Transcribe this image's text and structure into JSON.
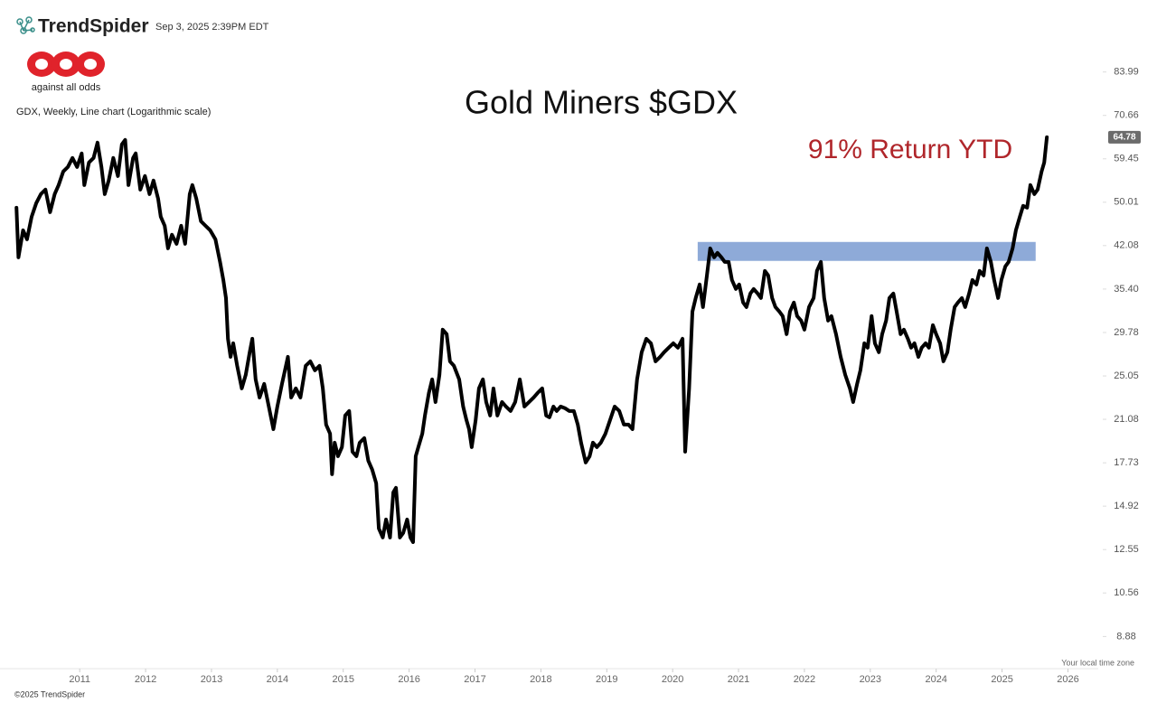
{
  "chart_data": {
    "type": "line",
    "brand": "TrendSpider",
    "timestamp": "Sep 3, 2025 2:39PM EDT",
    "logo_text": "against all odds",
    "title": "Gold Miners $GDX",
    "subtitle": "GDX, Weekly, Line chart (Logarithmic scale)",
    "annotation": "91% Return YTD",
    "annotation_color": "#b0262b",
    "footer_note": "Your local time zone",
    "copyright": "©2025 TrendSpider",
    "log_scale": true,
    "grid": false,
    "xlim": [
      2009.79,
      2026.46
    ],
    "xticks": [
      2011,
      2012,
      2013,
      2014,
      2015,
      2016,
      2017,
      2018,
      2019,
      2020,
      2021,
      2022,
      2023,
      2024,
      2025,
      2026
    ],
    "ylim": [
      7.87,
      89.5
    ],
    "yticks": [
      8.88,
      10.56,
      12.55,
      14.92,
      17.73,
      21.08,
      25.05,
      29.78,
      {
        "value": 35.4,
        "label": "35.40"
      },
      42.08,
      50.01,
      59.45,
      70.66,
      83.99
    ],
    "zone": {
      "x": [
        2020.38,
        2025.51
      ],
      "y": [
        39.6,
        42.7
      ],
      "color": "#8eaad8"
    },
    "series": [
      {
        "name": "GDX",
        "color": "#000000",
        "x": [
          2010.04,
          2010.07,
          2010.14,
          2010.2,
          2010.27,
          2010.34,
          2010.41,
          2010.48,
          2010.55,
          2010.62,
          2010.68,
          2010.75,
          2010.82,
          2010.89,
          2010.96,
          2011.03,
          2011.07,
          2011.14,
          2011.21,
          2011.27,
          2011.33,
          2011.38,
          2011.44,
          2011.51,
          2011.58,
          2011.64,
          2011.69,
          2011.74,
          2011.81,
          2011.85,
          2011.92,
          2011.99,
          2012.06,
          2012.12,
          2012.19,
          2012.23,
          2012.29,
          2012.34,
          2012.4,
          2012.47,
          2012.54,
          2012.6,
          2012.67,
          2012.71,
          2012.77,
          2012.84,
          2012.91,
          2012.98,
          2013.06,
          2013.13,
          2013.18,
          2013.22,
          2013.25,
          2013.29,
          2013.33,
          2013.39,
          2013.46,
          2013.52,
          2013.58,
          2013.62,
          2013.67,
          2013.73,
          2013.8,
          2013.87,
          2013.94,
          2014.0,
          2014.07,
          2014.16,
          2014.21,
          2014.28,
          2014.35,
          2014.43,
          2014.5,
          2014.57,
          2014.64,
          2014.69,
          2014.74,
          2014.8,
          2014.83,
          2014.87,
          2014.92,
          2014.98,
          2015.03,
          2015.09,
          2015.14,
          2015.2,
          2015.25,
          2015.32,
          2015.38,
          2015.44,
          2015.5,
          2015.54,
          2015.6,
          2015.65,
          2015.71,
          2015.76,
          2015.8,
          2015.86,
          2015.91,
          2015.97,
          2016.02,
          2016.06,
          2016.1,
          2016.14,
          2016.2,
          2016.24,
          2016.3,
          2016.35,
          2016.4,
          2016.46,
          2016.51,
          2016.57,
          2016.62,
          2016.68,
          2016.76,
          2016.82,
          2016.87,
          2016.91,
          2016.95,
          2017.01,
          2017.06,
          2017.12,
          2017.17,
          2017.23,
          2017.28,
          2017.34,
          2017.41,
          2017.47,
          2017.54,
          2017.61,
          2017.68,
          2017.75,
          2017.82,
          2017.89,
          2017.95,
          2018.02,
          2018.08,
          2018.13,
          2018.19,
          2018.24,
          2018.3,
          2018.37,
          2018.43,
          2018.5,
          2018.56,
          2018.61,
          2018.68,
          2018.74,
          2018.79,
          2018.85,
          2018.91,
          2018.98,
          2019.05,
          2019.12,
          2019.19,
          2019.26,
          2019.33,
          2019.39,
          2019.46,
          2019.53,
          2019.6,
          2019.67,
          2019.74,
          2019.81,
          2019.87,
          2019.94,
          2020.01,
          2020.08,
          2020.15,
          2020.19,
          2020.25,
          2020.3,
          2020.35,
          2020.41,
          2020.46,
          2020.52,
          2020.57,
          2020.63,
          2020.68,
          2020.74,
          2020.79,
          2020.85,
          2020.9,
          2020.96,
          2021.01,
          2021.07,
          2021.12,
          2021.18,
          2021.23,
          2021.29,
          2021.34,
          2021.4,
          2021.45,
          2021.51,
          2021.56,
          2021.62,
          2021.67,
          2021.73,
          2021.78,
          2021.84,
          2021.89,
          2021.95,
          2022.0,
          2022.07,
          2022.14,
          2022.19,
          2022.25,
          2022.3,
          2022.36,
          2022.41,
          2022.48,
          2022.55,
          2022.62,
          2022.69,
          2022.74,
          2022.8,
          2022.85,
          2022.91,
          2022.96,
          2023.02,
          2023.07,
          2023.13,
          2023.18,
          2023.24,
          2023.29,
          2023.35,
          2023.4,
          2023.46,
          2023.51,
          2023.57,
          2023.62,
          2023.67,
          2023.73,
          2023.78,
          2023.84,
          2023.89,
          2023.95,
          2024.0,
          2024.06,
          2024.11,
          2024.17,
          2024.22,
          2024.28,
          2024.33,
          2024.39,
          2024.44,
          2024.5,
          2024.55,
          2024.61,
          2024.66,
          2024.72,
          2024.77,
          2024.83,
          2024.88,
          2024.94,
          2024.99,
          2025.05,
          2025.1,
          2025.16,
          2025.21,
          2025.27,
          2025.32,
          2025.38,
          2025.43,
          2025.49,
          2025.54,
          2025.6,
          2025.64,
          2025.68
        ],
        "values": [
          48.94,
          40.16,
          44.73,
          43.15,
          47.21,
          49.83,
          51.65,
          52.59,
          48.07,
          51.65,
          53.55,
          56.52,
          57.54,
          59.65,
          57.54,
          60.74,
          53.55,
          58.59,
          59.65,
          63.41,
          57.54,
          51.65,
          54.52,
          59.65,
          55.51,
          62.96,
          64.1,
          53.55,
          59.65,
          60.74,
          52.59,
          55.51,
          51.65,
          54.52,
          50.73,
          47.21,
          45.54,
          41.63,
          43.94,
          42.38,
          45.54,
          42.38,
          51.65,
          53.55,
          50.73,
          46.37,
          45.54,
          44.73,
          43.15,
          39.44,
          36.7,
          34.16,
          29.05,
          27.03,
          28.53,
          26.08,
          23.84,
          25.16,
          27.53,
          29.05,
          24.71,
          22.99,
          24.27,
          22.18,
          20.27,
          22.18,
          24.27,
          27.03,
          22.99,
          23.84,
          22.99,
          26.08,
          26.55,
          25.62,
          26.08,
          23.84,
          20.64,
          19.91,
          16.94,
          19.21,
          18.2,
          18.87,
          21.4,
          21.79,
          18.53,
          18.2,
          19.21,
          19.56,
          17.88,
          17.25,
          16.34,
          13.65,
          13.17,
          14.15,
          13.17,
          15.76,
          16.05,
          13.17,
          13.41,
          14.15,
          13.17,
          12.93,
          18.2,
          18.87,
          19.91,
          21.4,
          23.41,
          24.71,
          22.58,
          25.16,
          30.12,
          29.58,
          26.55,
          26.08,
          24.71,
          22.18,
          21.02,
          20.27,
          18.87,
          21.02,
          23.84,
          24.71,
          22.58,
          21.4,
          23.84,
          21.4,
          22.58,
          22.18,
          21.79,
          22.58,
          24.71,
          22.18,
          22.58,
          22.99,
          23.41,
          23.84,
          21.4,
          21.25,
          22.18,
          21.79,
          22.18,
          22.02,
          21.79,
          21.79,
          20.64,
          19.21,
          17.75,
          18.2,
          19.21,
          18.87,
          19.21,
          19.91,
          21.02,
          22.18,
          21.79,
          20.64,
          20.64,
          20.27,
          24.71,
          27.53,
          29.05,
          28.53,
          26.55,
          27.03,
          27.53,
          28.03,
          28.53,
          28.03,
          29.05,
          18.53,
          23.84,
          32.36,
          34.16,
          36.05,
          32.95,
          37.37,
          41.63,
          40.16,
          40.89,
          40.16,
          39.44,
          39.44,
          36.7,
          35.41,
          36.05,
          33.55,
          32.95,
          34.78,
          35.41,
          34.78,
          34.16,
          38.05,
          37.37,
          34.16,
          32.95,
          32.36,
          31.79,
          29.58,
          32.36,
          33.55,
          31.79,
          31.22,
          30.12,
          32.95,
          34.16,
          38.05,
          39.44,
          34.16,
          31.22,
          31.79,
          29.58,
          27.03,
          25.16,
          23.84,
          22.58,
          24.27,
          25.62,
          28.53,
          28.03,
          31.79,
          28.53,
          27.53,
          29.58,
          31.22,
          34.16,
          34.78,
          32.36,
          29.58,
          30.12,
          29.05,
          28.03,
          28.53,
          27.03,
          28.03,
          28.53,
          28.03,
          30.66,
          29.58,
          28.53,
          26.55,
          27.53,
          30.12,
          32.95,
          33.55,
          34.16,
          32.95,
          34.78,
          36.7,
          36.05,
          38.05,
          37.37,
          41.63,
          39.44,
          36.7,
          34.16,
          36.7,
          38.74,
          39.44,
          41.63,
          44.73,
          47.21,
          49.3,
          48.94,
          53.55,
          51.65,
          52.59,
          56.52,
          58.59,
          64.78
        ]
      }
    ]
  }
}
